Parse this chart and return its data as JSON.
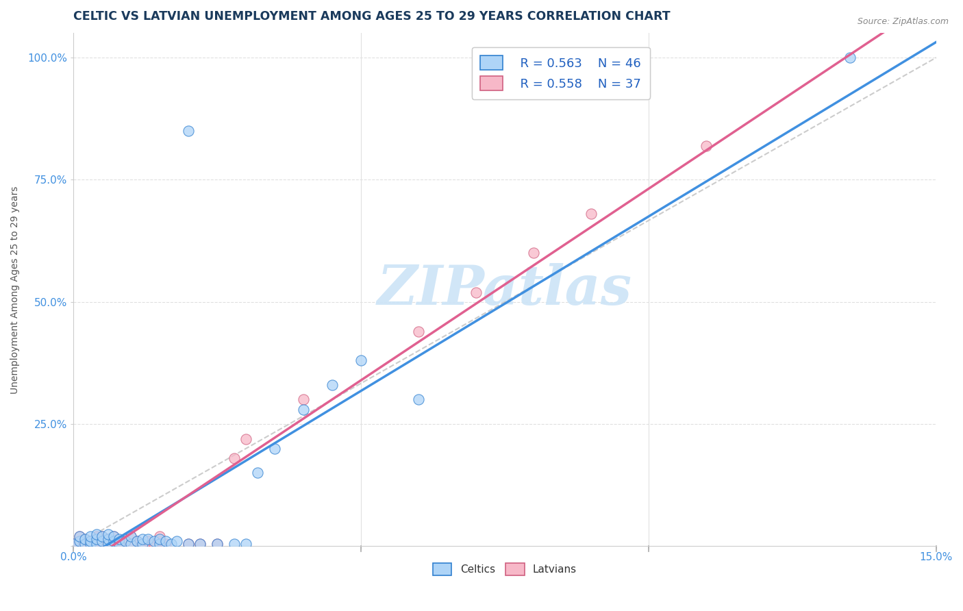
{
  "title": "CELTIC VS LATVIAN UNEMPLOYMENT AMONG AGES 25 TO 29 YEARS CORRELATION CHART",
  "source": "Source: ZipAtlas.com",
  "ylabel": "Unemployment Among Ages 25 to 29 years",
  "xlim": [
    0.0,
    0.15
  ],
  "ylim": [
    0.0,
    1.05
  ],
  "legend_r1": "R = 0.563",
  "legend_n1": "N = 46",
  "legend_r2": "R = 0.558",
  "legend_n2": "N = 37",
  "celtics_color": "#aed4f7",
  "latvians_color": "#f7b8c8",
  "celtics_line_color": "#4090e0",
  "latvians_line_color": "#e06090",
  "ref_line_color": "#cccccc",
  "watermark": "ZIPatlas",
  "title_color": "#1a3a5c",
  "axis_label_color": "#555555",
  "tick_color": "#4090e0",
  "celtics_x": [
    0.0,
    0.001,
    0.001,
    0.002,
    0.002,
    0.003,
    0.003,
    0.003,
    0.004,
    0.004,
    0.004,
    0.005,
    0.005,
    0.006,
    0.006,
    0.006,
    0.007,
    0.007,
    0.008,
    0.008,
    0.009,
    0.01,
    0.01,
    0.011,
    0.012,
    0.012,
    0.013,
    0.014,
    0.015,
    0.015,
    0.016,
    0.017,
    0.018,
    0.02,
    0.022,
    0.025,
    0.028,
    0.03,
    0.032,
    0.035,
    0.04,
    0.045,
    0.05,
    0.06,
    0.02,
    0.135
  ],
  "celtics_y": [
    0.005,
    0.01,
    0.02,
    0.005,
    0.015,
    0.005,
    0.01,
    0.02,
    0.005,
    0.015,
    0.025,
    0.01,
    0.02,
    0.005,
    0.015,
    0.025,
    0.01,
    0.02,
    0.005,
    0.015,
    0.01,
    0.005,
    0.02,
    0.01,
    0.005,
    0.015,
    0.015,
    0.01,
    0.005,
    0.015,
    0.01,
    0.005,
    0.01,
    0.005,
    0.005,
    0.005,
    0.005,
    0.005,
    0.15,
    0.2,
    0.28,
    0.33,
    0.38,
    0.3,
    0.85,
    1.0
  ],
  "latvians_x": [
    0.0,
    0.001,
    0.001,
    0.002,
    0.002,
    0.003,
    0.003,
    0.004,
    0.004,
    0.005,
    0.005,
    0.006,
    0.006,
    0.007,
    0.007,
    0.008,
    0.009,
    0.01,
    0.01,
    0.011,
    0.012,
    0.013,
    0.014,
    0.015,
    0.015,
    0.016,
    0.02,
    0.022,
    0.025,
    0.028,
    0.03,
    0.04,
    0.06,
    0.07,
    0.08,
    0.09,
    0.11
  ],
  "latvians_y": [
    0.005,
    0.01,
    0.02,
    0.005,
    0.015,
    0.005,
    0.01,
    0.005,
    0.02,
    0.01,
    0.02,
    0.005,
    0.015,
    0.01,
    0.02,
    0.005,
    0.01,
    0.005,
    0.02,
    0.01,
    0.005,
    0.01,
    0.005,
    0.01,
    0.02,
    0.005,
    0.005,
    0.005,
    0.005,
    0.18,
    0.22,
    0.3,
    0.44,
    0.52,
    0.6,
    0.68,
    0.82
  ]
}
